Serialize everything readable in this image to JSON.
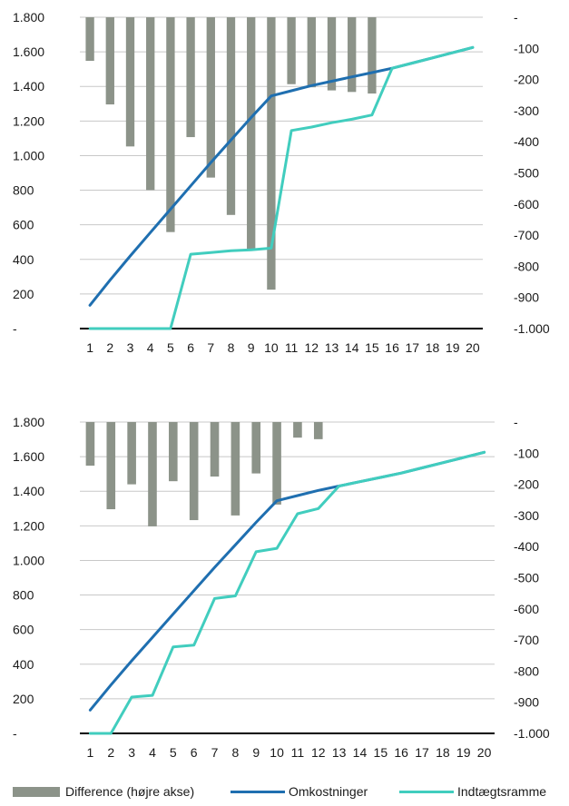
{
  "colors": {
    "difference": "#8c9389",
    "omkostninger": "#1f6fb0",
    "indtaegtsramme": "#41cdbe",
    "grid": "#c8c8c8",
    "axis": "#000000"
  },
  "legend": {
    "difference": "Difference (højre akse)",
    "omkostninger": "Omkostninger",
    "indtaegtsramme": "Indtægtsramme"
  },
  "chart_data": [
    {
      "type": "bar+line",
      "x": [
        1,
        2,
        3,
        4,
        5,
        6,
        7,
        8,
        9,
        10,
        11,
        12,
        13,
        14,
        15,
        16,
        17,
        18,
        19,
        20
      ],
      "x_tick_labels": [
        "1",
        "2",
        "3",
        "4",
        "5",
        "6",
        "7",
        "8",
        "9",
        "10",
        "11",
        "12",
        "13",
        "14",
        "15",
        "16",
        "17",
        "18",
        "19",
        "20"
      ],
      "left_axis": {
        "ylim": [
          0,
          1800
        ],
        "ticks": [
          0,
          200,
          400,
          600,
          800,
          1000,
          1200,
          1400,
          1600,
          1800
        ],
        "tick_labels": [
          "-",
          "200",
          "400",
          "600",
          "800",
          "1.000",
          "1.200",
          "1.400",
          "1.600",
          "1.800"
        ]
      },
      "right_axis": {
        "ylim": [
          -1000,
          0
        ],
        "ticks": [
          0,
          -100,
          -200,
          -300,
          -400,
          -500,
          -600,
          -700,
          -800,
          -900,
          -1000
        ],
        "tick_labels": [
          "-",
          "-100",
          "-200",
          "-300",
          "-400",
          "-500",
          "-600",
          "-700",
          "-800",
          "-900",
          "-1.000"
        ]
      },
      "grid": true,
      "series": [
        {
          "name": "Difference (højre akse)",
          "kind": "bar",
          "axis": "right",
          "values": [
            -140,
            -280,
            -415,
            -555,
            -690,
            -385,
            -515,
            -635,
            -745,
            -875,
            -215,
            -225,
            -235,
            -240,
            -245,
            0,
            0,
            0,
            0,
            0
          ]
        },
        {
          "name": "Omkostninger",
          "kind": "line",
          "axis": "left",
          "values": [
            135,
            280,
            420,
            555,
            690,
            825,
            960,
            1090,
            1220,
            1345,
            1375,
            1405,
            1430,
            1455,
            1480,
            1505,
            1535,
            1565,
            1595,
            1625
          ]
        },
        {
          "name": "Indtægtsramme",
          "kind": "line",
          "axis": "left",
          "values": [
            0,
            0,
            0,
            0,
            0,
            430,
            440,
            450,
            455,
            465,
            1145,
            1165,
            1190,
            1210,
            1235,
            1505,
            1535,
            1565,
            1595,
            1625
          ]
        }
      ]
    },
    {
      "type": "bar+line",
      "x": [
        1,
        2,
        3,
        4,
        5,
        6,
        7,
        8,
        9,
        10,
        11,
        12,
        13,
        14,
        15,
        16,
        17,
        18,
        19,
        20
      ],
      "x_tick_labels": [
        "1",
        "2",
        "3",
        "4",
        "5",
        "6",
        "7",
        "8",
        "9",
        "10",
        "11",
        "12",
        "13",
        "14",
        "15",
        "16",
        "17",
        "18",
        "19",
        "20"
      ],
      "left_axis": {
        "ylim": [
          0,
          1800
        ],
        "ticks": [
          0,
          200,
          400,
          600,
          800,
          1000,
          1200,
          1400,
          1600,
          1800
        ],
        "tick_labels": [
          "-",
          "200",
          "400",
          "600",
          "800",
          "1.000",
          "1.200",
          "1.400",
          "1.600",
          "1.800"
        ]
      },
      "right_axis": {
        "ylim": [
          -1000,
          0
        ],
        "ticks": [
          0,
          -100,
          -200,
          -300,
          -400,
          -500,
          -600,
          -700,
          -800,
          -900,
          -1000
        ],
        "tick_labels": [
          "-",
          "-100",
          "-200",
          "-300",
          "-400",
          "-500",
          "-600",
          "-700",
          "-800",
          "-900",
          "-1.000"
        ]
      },
      "grid": true,
      "series": [
        {
          "name": "Difference (højre akse)",
          "kind": "bar",
          "axis": "right",
          "values": [
            -140,
            -280,
            -200,
            -335,
            -190,
            -315,
            -175,
            -300,
            -165,
            -265,
            -50,
            -55,
            0,
            0,
            0,
            0,
            0,
            0,
            0,
            0
          ]
        },
        {
          "name": "Omkostninger",
          "kind": "line",
          "axis": "left",
          "values": [
            135,
            280,
            420,
            555,
            690,
            825,
            960,
            1090,
            1220,
            1345,
            1375,
            1405,
            1430,
            1455,
            1480,
            1505,
            1535,
            1565,
            1595,
            1625
          ]
        },
        {
          "name": "Indtægtsramme",
          "kind": "line",
          "axis": "left",
          "values": [
            0,
            0,
            210,
            220,
            500,
            510,
            780,
            795,
            1050,
            1070,
            1270,
            1300,
            1430,
            1455,
            1480,
            1505,
            1535,
            1565,
            1595,
            1625
          ]
        }
      ]
    }
  ]
}
